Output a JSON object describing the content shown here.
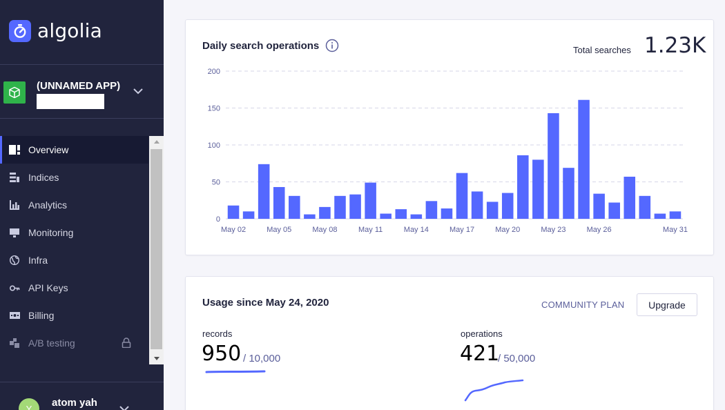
{
  "brand": {
    "name": "algolia",
    "accent": "#5468ff",
    "sidebar_bg": "#21243d"
  },
  "app": {
    "name": "(UNNAMED APP)"
  },
  "nav": {
    "items": [
      {
        "label": "Overview",
        "icon": "overview-icon"
      },
      {
        "label": "Indices",
        "icon": "indices-icon"
      },
      {
        "label": "Analytics",
        "icon": "analytics-icon"
      },
      {
        "label": "Monitoring",
        "icon": "monitoring-icon"
      },
      {
        "label": "Infra",
        "icon": "globe-icon"
      },
      {
        "label": "API Keys",
        "icon": "key-icon"
      },
      {
        "label": "Billing",
        "icon": "billing-icon"
      },
      {
        "label": "A/B testing",
        "icon": "ab-testing-icon"
      }
    ]
  },
  "user": {
    "name": "atom yah",
    "initial": "Y"
  },
  "search_card": {
    "title": "Daily search operations",
    "total_label": "Total searches",
    "total_value": "1.23K"
  },
  "chart_data": {
    "type": "bar",
    "title": "Daily search operations",
    "xlabel": "",
    "ylabel": "",
    "ylim": [
      0,
      200
    ],
    "yticks": [
      0,
      50,
      100,
      150,
      200
    ],
    "grid": true,
    "categories": [
      "May 02",
      "May 03",
      "May 04",
      "May 05",
      "May 06",
      "May 07",
      "May 08",
      "May 09",
      "May 10",
      "May 11",
      "May 12",
      "May 13",
      "May 14",
      "May 15",
      "May 16",
      "May 17",
      "May 18",
      "May 19",
      "May 20",
      "May 21",
      "May 22",
      "May 23",
      "May 24",
      "May 25",
      "May 26",
      "May 27",
      "May 28",
      "May 29",
      "May 30",
      "May 31"
    ],
    "xtick_labels": [
      "May 02",
      "May 05",
      "May 08",
      "May 11",
      "May 14",
      "May 17",
      "May 20",
      "May 23",
      "May 26",
      "May 31"
    ],
    "values": [
      18,
      10,
      74,
      43,
      31,
      6,
      16,
      31,
      33,
      49,
      7,
      13,
      6,
      24,
      14,
      62,
      37,
      23,
      35,
      86,
      80,
      143,
      69,
      161,
      34,
      22,
      57,
      31,
      7,
      10
    ],
    "color": "#5468ff"
  },
  "usage": {
    "title": "Usage since May 24, 2020",
    "plan": "COMMUNITY PLAN",
    "upgrade_label": "Upgrade",
    "records": {
      "label": "records",
      "value": "950",
      "limit": "/ 10,000"
    },
    "operations": {
      "label": "operations",
      "value": "421",
      "limit": "/ 50,000"
    }
  }
}
